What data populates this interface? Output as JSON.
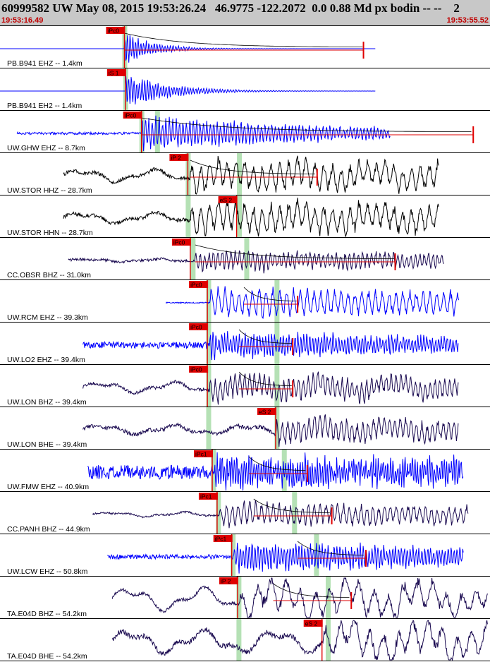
{
  "header": {
    "title": "60999582 UW May 08, 2015 19:53:26.24   46.9775 -122.2072  0.0 0.88 Md px bodin -- --    2",
    "start_time": "19:53:16.49",
    "end_time": "19:53:55.52"
  },
  "chart_data": {
    "type": "seismogram",
    "x_range_time": [
      "19:53:16.49",
      "19:53:55.52"
    ],
    "traces": [
      {
        "label": "PB.B941 EHZ -- 1.4km",
        "color": "#0000ff",
        "start": 0.0,
        "end": 0.77,
        "onset": 0.255,
        "amp": 0.42,
        "decay": 0.06,
        "noise": 0.0,
        "low": 0.0,
        "period": 0.0055,
        "seed": 1,
        "picks": [
          {
            "label": "iPc0",
            "pos": 0.255,
            "kind": "P"
          }
        ],
        "coda": {
          "start": 0.255,
          "end": 0.745
        },
        "green": [
          0.255
        ]
      },
      {
        "label": "PB.B941 EH2 -- 1.4km",
        "color": "#0000ff",
        "start": 0.0,
        "end": 0.77,
        "onset": 0.257,
        "amp": 0.45,
        "decay": 0.09,
        "noise": 0.0,
        "low": 0.0,
        "period": 0.0055,
        "seed": 2,
        "picks": [
          {
            "label": "iS 1",
            "pos": 0.257,
            "kind": "S"
          }
        ],
        "coda": null,
        "green": [
          0.257
        ]
      },
      {
        "label": "UW.GHW EHZ -- 8.7km",
        "color": "#0000ff",
        "start": 0.035,
        "end": 0.8,
        "onset": 0.29,
        "amp": 0.42,
        "decay": 0.5,
        "noise": 0.04,
        "low": 0.0,
        "period": 0.007,
        "seed": 3,
        "picks": [
          {
            "label": "iPc0",
            "pos": 0.29,
            "kind": "P"
          }
        ],
        "coda": {
          "start": 0.29,
          "end": 0.97
        },
        "green": [
          0.29,
          0.322
        ]
      },
      {
        "label": "UW.STOR HHZ -- 28.7km",
        "color": "#000000",
        "start": 0.13,
        "end": 0.9,
        "onset": 0.39,
        "amp": 0.38,
        "decay": 2.0,
        "noise": 0.06,
        "low": 0.16,
        "period": 0.018,
        "seed": 4,
        "picks": [
          {
            "label": "iP 2",
            "pos": 0.385,
            "kind": "P"
          }
        ],
        "coda": {
          "start": 0.39,
          "end": 0.65
        },
        "green": [
          0.385,
          0.49
        ]
      },
      {
        "label": "UW.STOR HHN -- 28.7km",
        "color": "#000000",
        "start": 0.13,
        "end": 0.9,
        "onset": 0.39,
        "amp": 0.4,
        "decay": 2.0,
        "noise": 0.06,
        "low": 0.14,
        "period": 0.018,
        "seed": 5,
        "picks": [
          {
            "label": "eS 2",
            "pos": 0.485,
            "kind": "S"
          }
        ],
        "coda": null,
        "green": [
          0.385,
          0.49
        ]
      },
      {
        "label": "CC.OBSR BHZ -- 31.0km",
        "color": "#1a0a50",
        "start": 0.14,
        "end": 0.91,
        "onset": 0.4,
        "amp": 0.24,
        "decay": 2.0,
        "noise": 0.04,
        "low": 0.04,
        "period": 0.009,
        "seed": 6,
        "picks": [
          {
            "label": "iPc0",
            "pos": 0.39,
            "kind": "P"
          }
        ],
        "coda": {
          "start": 0.4,
          "end": 0.81
        },
        "green": [
          0.395,
          0.505
        ]
      },
      {
        "label": "UW.RCM EHZ -- 39.3km",
        "color": "#0000ff",
        "start": 0.34,
        "end": 0.94,
        "onset": 0.43,
        "amp": 0.36,
        "decay": 2.0,
        "noise": 0.02,
        "low": 0.0,
        "period": 0.014,
        "seed": 7,
        "picks": [
          {
            "label": "iPc0",
            "pos": 0.425,
            "kind": "P"
          }
        ],
        "coda": {
          "start": 0.5,
          "end": 0.61
        },
        "green": [
          0.427,
          0.567
        ]
      },
      {
        "label": "UW.LO2 EHZ -- 39.4km",
        "color": "#0000ff",
        "start": 0.17,
        "end": 0.94,
        "onset": 0.43,
        "amp": 0.34,
        "decay": 0.8,
        "noise": 0.1,
        "low": 0.0,
        "period": 0.006,
        "seed": 8,
        "picks": [
          {
            "label": "iPc0",
            "pos": 0.425,
            "kind": "P"
          }
        ],
        "coda": {
          "start": 0.49,
          "end": 0.6
        },
        "green": [
          0.427,
          0.567
        ]
      },
      {
        "label": "UW.LON BHZ -- 39.4km",
        "color": "#1a0a50",
        "start": 0.17,
        "end": 0.94,
        "onset": 0.43,
        "amp": 0.3,
        "decay": 2.0,
        "noise": 0.05,
        "low": 0.14,
        "period": 0.01,
        "seed": 9,
        "picks": [
          {
            "label": "iPc0",
            "pos": 0.425,
            "kind": "P"
          }
        ],
        "coda": {
          "start": 0.49,
          "end": 0.6
        },
        "green": [
          0.427,
          0.567
        ]
      },
      {
        "label": "UW.LON BHE -- 39.4km",
        "color": "#1a0a50",
        "start": 0.17,
        "end": 0.94,
        "onset": 0.565,
        "amp": 0.3,
        "decay": 2.0,
        "noise": 0.06,
        "low": 0.12,
        "period": 0.011,
        "seed": 10,
        "picks": [
          {
            "label": "eS 2",
            "pos": 0.565,
            "kind": "S"
          }
        ],
        "coda": null,
        "green": [
          0.427,
          0.567
        ]
      },
      {
        "label": "UW.FMW EHZ -- 40.9km",
        "color": "#0000ff",
        "start": 0.18,
        "end": 0.95,
        "onset": 0.44,
        "amp": 0.36,
        "decay": 2.0,
        "noise": 0.22,
        "low": 0.0,
        "period": 0.005,
        "seed": 11,
        "picks": [
          {
            "label": "iPc1",
            "pos": 0.435,
            "kind": "P"
          }
        ],
        "coda": {
          "start": 0.51,
          "end": 0.63
        },
        "green": [
          0.437,
          0.582
        ]
      },
      {
        "label": "CC.PANH BHZ -- 44.9km",
        "color": "#1a0a50",
        "start": 0.19,
        "end": 0.96,
        "onset": 0.45,
        "amp": 0.28,
        "decay": 2.0,
        "noise": 0.03,
        "low": 0.06,
        "period": 0.012,
        "seed": 12,
        "picks": [
          {
            "label": "iPc1",
            "pos": 0.445,
            "kind": "P"
          }
        ],
        "coda": {
          "start": 0.52,
          "end": 0.68
        },
        "green": [
          0.447,
          0.603
        ]
      },
      {
        "label": "UW.LCW EHZ -- 50.8km",
        "color": "#0000ff",
        "start": 0.22,
        "end": 0.95,
        "onset": 0.48,
        "amp": 0.38,
        "decay": 0.9,
        "noise": 0.07,
        "low": 0.0,
        "period": 0.006,
        "seed": 13,
        "picks": [
          {
            "label": "iPc1",
            "pos": 0.475,
            "kind": "P"
          }
        ],
        "coda": {
          "start": 0.61,
          "end": 0.75
        },
        "green": [
          0.477,
          0.648
        ]
      },
      {
        "label": "TA.E04D BHZ -- 54.2km",
        "color": "#1a0a50",
        "start": 0.23,
        "end": 1.0,
        "onset": 0.49,
        "amp": 0.4,
        "decay": 2.0,
        "noise": 0.05,
        "low": 0.3,
        "period": 0.03,
        "seed": 14,
        "picks": [
          {
            "label": "iP 2",
            "pos": 0.487,
            "kind": "P"
          }
        ],
        "coda": {
          "start": 0.56,
          "end": 0.72
        },
        "green": [
          0.489,
          0.672
        ]
      },
      {
        "label": "TA.E04D BHE -- 54.2km",
        "color": "#1a0a50",
        "start": 0.23,
        "end": 1.0,
        "onset": 0.66,
        "amp": 0.4,
        "decay": 2.0,
        "noise": 0.08,
        "low": 0.3,
        "period": 0.03,
        "seed": 15,
        "picks": [
          {
            "label": "eS 2",
            "pos": 0.66,
            "kind": "S"
          }
        ],
        "coda": null,
        "green": [
          0.489,
          0.672
        ]
      }
    ]
  }
}
